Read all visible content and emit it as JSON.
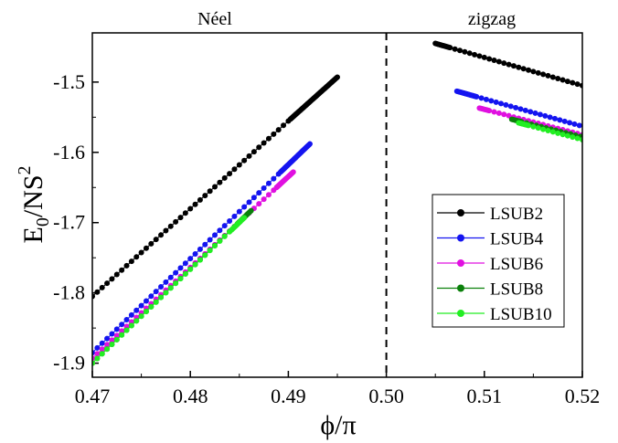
{
  "chart_data": {
    "type": "scatter",
    "xlabel": "ϕ/π",
    "ylabel": {
      "base": "E",
      "sub": "0",
      "mid": "/NS",
      "sup": "2"
    },
    "xlim": [
      0.47,
      0.52
    ],
    "ylim": [
      -1.92,
      -1.43
    ],
    "xticks": [
      0.47,
      0.48,
      0.49,
      0.5,
      0.51,
      0.52
    ],
    "xtick_labels": [
      "0.47",
      "0.48",
      "0.49",
      "0.50",
      "0.51",
      "0.52"
    ],
    "yticks": [
      -1.9,
      -1.8,
      -1.7,
      -1.6,
      -1.5
    ],
    "ytick_labels": [
      "-1.9",
      "-1.8",
      "-1.7",
      "-1.6",
      "-1.5"
    ],
    "grid": false,
    "legend_position": "bottom-right",
    "region_labels": [
      "Néel",
      "zigzag"
    ],
    "divider_x": 0.5,
    "series": [
      {
        "name": "LSUB2",
        "color": "#000000",
        "neel": {
          "x_start": 0.47,
          "y_start": -1.805,
          "x_end": 0.495,
          "y_end": -1.493,
          "dense_from": 0.4902
        },
        "zigzag": {
          "x_start": 0.505,
          "y_start": -1.445,
          "x_end": 0.52,
          "y_end": -1.505,
          "dense_to": 0.5065
        }
      },
      {
        "name": "LSUB4",
        "color": "#1414f0",
        "neel": {
          "x_start": 0.47,
          "y_start": -1.885,
          "x_end": 0.4922,
          "y_end": -1.588,
          "dense_from": 0.4892
        },
        "zigzag": {
          "x_start": 0.5072,
          "y_start": -1.513,
          "x_end": 0.52,
          "y_end": -1.563,
          "dense_to": 0.5092
        }
      },
      {
        "name": "LSUB6",
        "color": "#e010e0",
        "neel": {
          "x_start": 0.47,
          "y_start": -1.893,
          "x_end": 0.4905,
          "y_end": -1.628,
          "dense_from": 0.4888
        },
        "zigzag": {
          "x_start": 0.5095,
          "y_start": -1.537,
          "x_end": 0.52,
          "y_end": -1.575,
          "dense_to": 0.5105
        }
      },
      {
        "name": "LSUB8",
        "color": "#0a800a",
        "neel": {
          "x_start": 0.47,
          "y_start": -1.9,
          "x_end": 0.4862,
          "y_end": -1.683,
          "dense_from": 0.4848
        },
        "zigzag": {
          "x_start": 0.5128,
          "y_start": -1.553,
          "x_end": 0.52,
          "y_end": -1.578,
          "dense_to": 0.5138
        }
      },
      {
        "name": "LSUB10",
        "color": "#22ee22",
        "neel": {
          "x_start": 0.47,
          "y_start": -1.9,
          "x_end": 0.4855,
          "y_end": -1.693,
          "dense_from": 0.4842
        },
        "zigzag": {
          "x_start": 0.5135,
          "y_start": -1.558,
          "x_end": 0.52,
          "y_end": -1.582,
          "dense_to": 0.5145
        }
      }
    ]
  }
}
